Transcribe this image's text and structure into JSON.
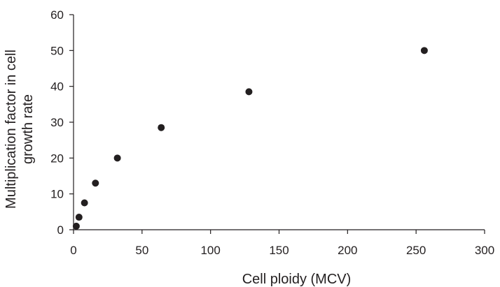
{
  "chart_data": {
    "type": "scatter",
    "title": "",
    "xlabel": "Cell ploidy (MCV)",
    "ylabel_lines": [
      "Multiplication factor in cell",
      "growth rate"
    ],
    "xlim": [
      0,
      300
    ],
    "ylim": [
      0,
      60
    ],
    "x_ticks": [
      0,
      50,
      100,
      150,
      200,
      250,
      300
    ],
    "y_ticks": [
      0,
      10,
      20,
      30,
      40,
      50,
      60
    ],
    "x_tick_labels": [
      "0",
      "50",
      "100",
      "150",
      "200",
      "250",
      "300"
    ],
    "y_tick_labels": [
      "0",
      "10",
      "20",
      "30",
      "40",
      "50",
      "60"
    ],
    "grid": false,
    "legend": "none",
    "marker_color": "#231f20",
    "points": [
      {
        "x": 2,
        "y": 1
      },
      {
        "x": 4,
        "y": 3.5
      },
      {
        "x": 8,
        "y": 7.5
      },
      {
        "x": 16,
        "y": 13
      },
      {
        "x": 32,
        "y": 20
      },
      {
        "x": 64,
        "y": 28.5
      },
      {
        "x": 128,
        "y": 38.5
      },
      {
        "x": 256,
        "y": 50
      }
    ]
  }
}
